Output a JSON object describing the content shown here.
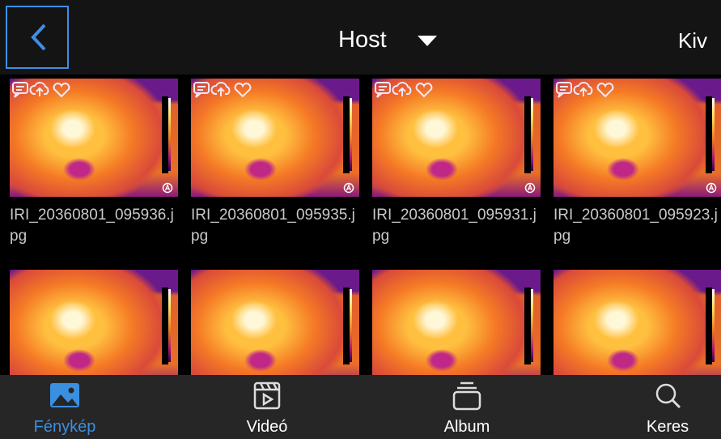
{
  "header": {
    "title": "Host",
    "action": "Kiv"
  },
  "files": [
    "IRI_20360801_095936.jpg",
    "IRI_20360801_095935.jpg",
    "IRI_20360801_095931.jpg",
    "IRI_20360801_095923.jpg"
  ],
  "tabs": [
    "Fénykép",
    "Videó",
    "Album",
    "Keres"
  ]
}
